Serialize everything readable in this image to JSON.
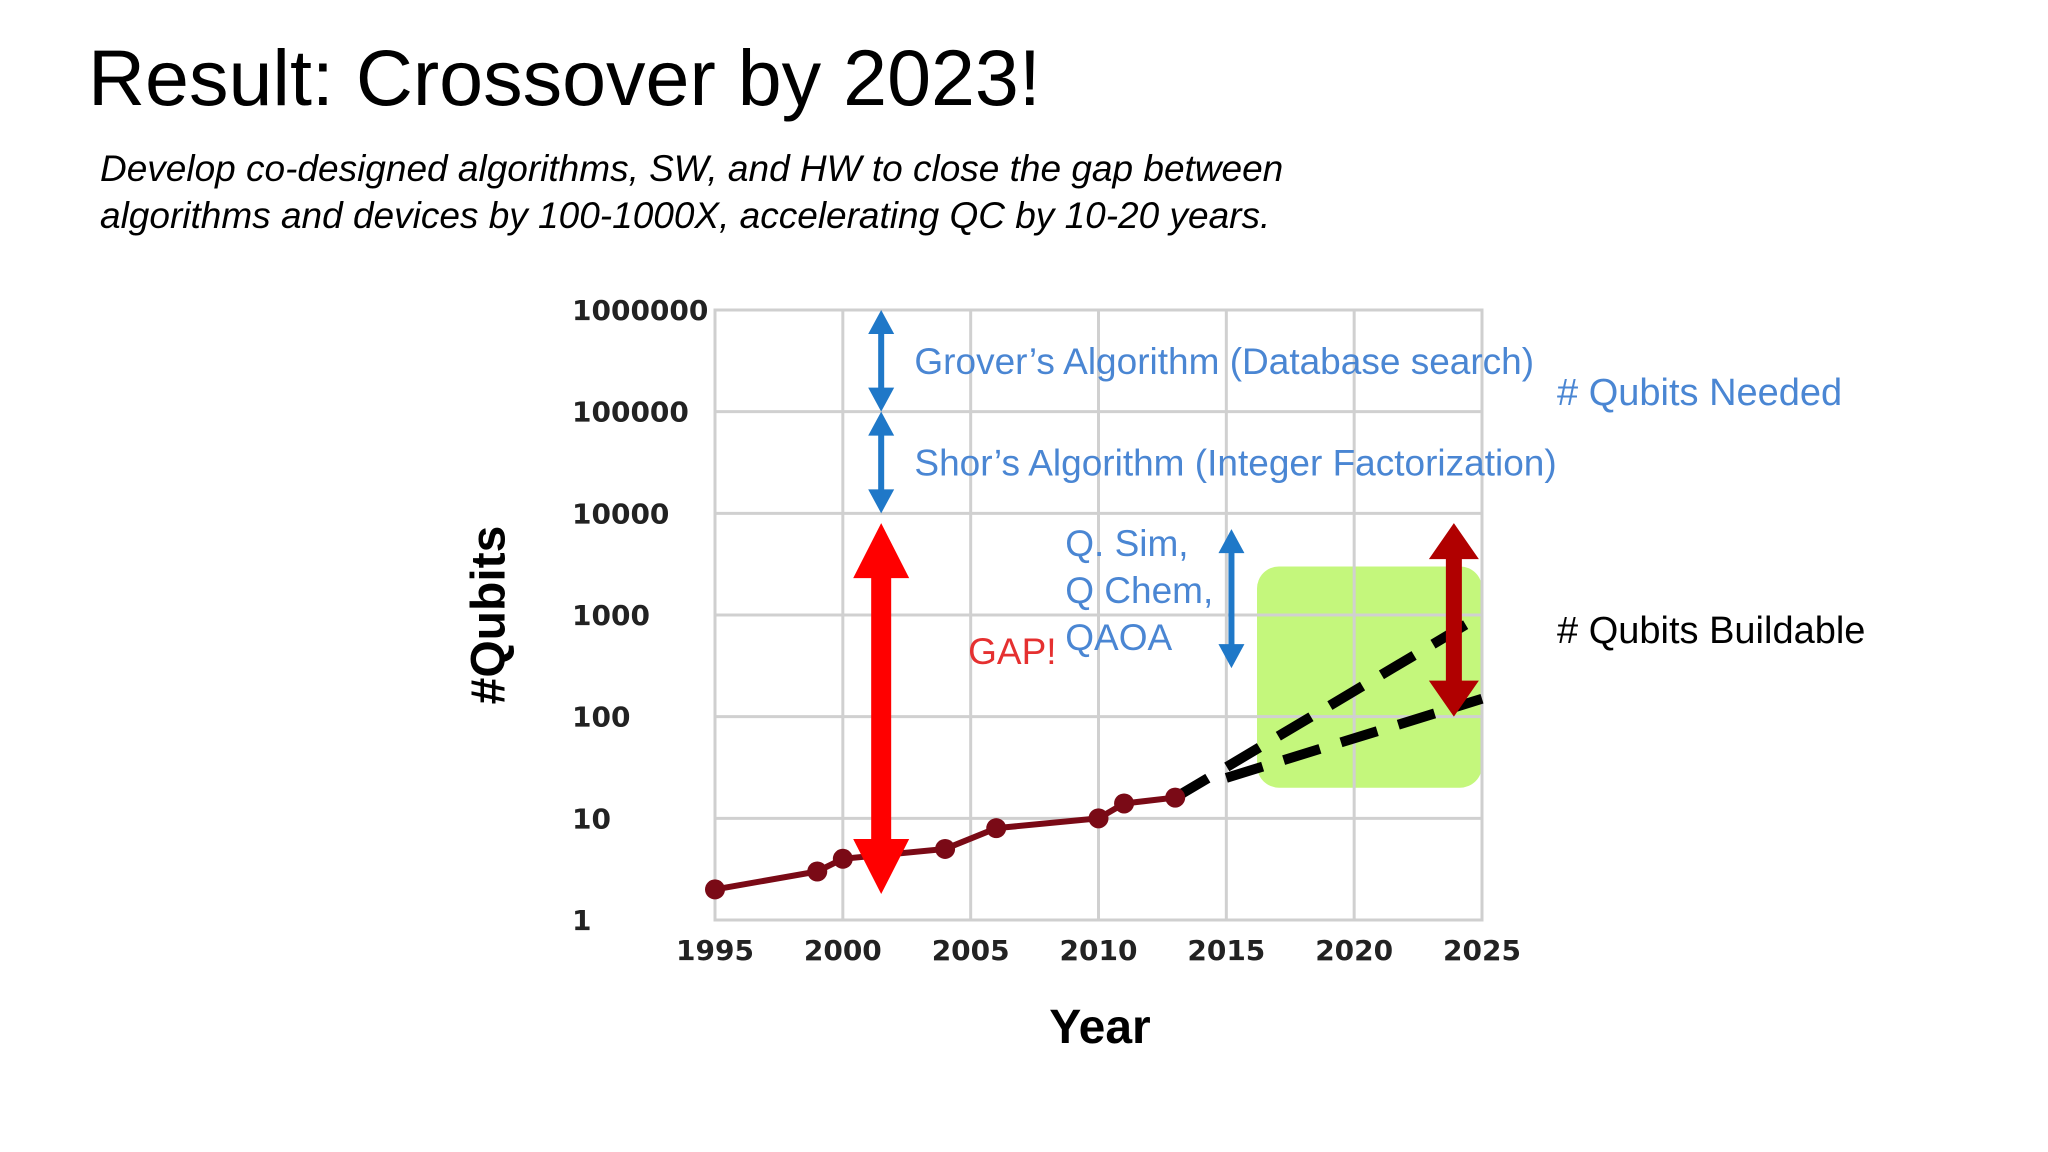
{
  "slide": {
    "title": "Result: Crossover by 2023!",
    "subtitle_lines": [
      "Develop co-designed algorithms, SW, and HW to close the gap between",
      "algorithms and devices by 100-1000X, accelerating QC by 10-20 years."
    ]
  },
  "legend": {
    "needed": "# Qubits Needed",
    "buildable": "# Qubits Buildable"
  },
  "colors": {
    "needed_text": "#4a86d3",
    "needed_arrow": "#1f78c8",
    "gap": "#ff0000",
    "buildable_line": "#7a0a16",
    "projection_arrow": "#b00000",
    "projection_region": "#c4f77c"
  },
  "chart_data": {
    "type": "line",
    "title": "",
    "xlabel": "Year",
    "ylabel": "#Qubits",
    "y_scale": "log",
    "xlim": [
      1995,
      2025
    ],
    "ylim": [
      1,
      1000000
    ],
    "x_ticks": [
      "1995",
      "2000",
      "2005",
      "2010",
      "2015",
      "2020",
      "2025"
    ],
    "y_ticks": [
      "1",
      "10",
      "100",
      "1000",
      "10000",
      "100000",
      "1000000"
    ],
    "grid": true,
    "series": [
      {
        "style": "solid-markers",
        "x": [
          1995,
          1999,
          2000,
          2004,
          2006,
          2010,
          2011,
          2013
        ],
        "y": [
          2,
          3,
          4,
          5,
          8,
          10,
          14,
          16
        ]
      }
    ],
    "projections": [
      {
        "style": "dashed",
        "x": [
          2013,
          2025
        ],
        "y": [
          16,
          1000
        ]
      },
      {
        "style": "dashed",
        "x": [
          2015,
          2025
        ],
        "y": [
          25,
          150
        ]
      }
    ],
    "projection_region": {
      "x": [
        2016.2,
        2025
      ],
      "y": [
        20,
        3000
      ]
    },
    "ranges": [
      {
        "label": "Grover’s Algorithm (Database search)",
        "x": 2001.5,
        "label_x": 2002.8,
        "y": [
          100000,
          1000000
        ]
      },
      {
        "label": "Shor’s Algorithm (Integer Factorization)",
        "x": 2001.5,
        "label_x": 2002.8,
        "y": [
          10000,
          100000
        ]
      },
      {
        "label_lines": [
          "Q. Sim,",
          "Q Chem,",
          "QAOA"
        ],
        "x": 2015.2,
        "label_x": 2008.7,
        "y": [
          300,
          7000
        ]
      }
    ],
    "gap": {
      "label": "GAP!",
      "x": 2001.5,
      "label_x": 2004.9,
      "y": [
        1.8,
        8000
      ]
    },
    "projection_arrow": {
      "x": 2023.9,
      "y": [
        100,
        8000
      ]
    }
  }
}
